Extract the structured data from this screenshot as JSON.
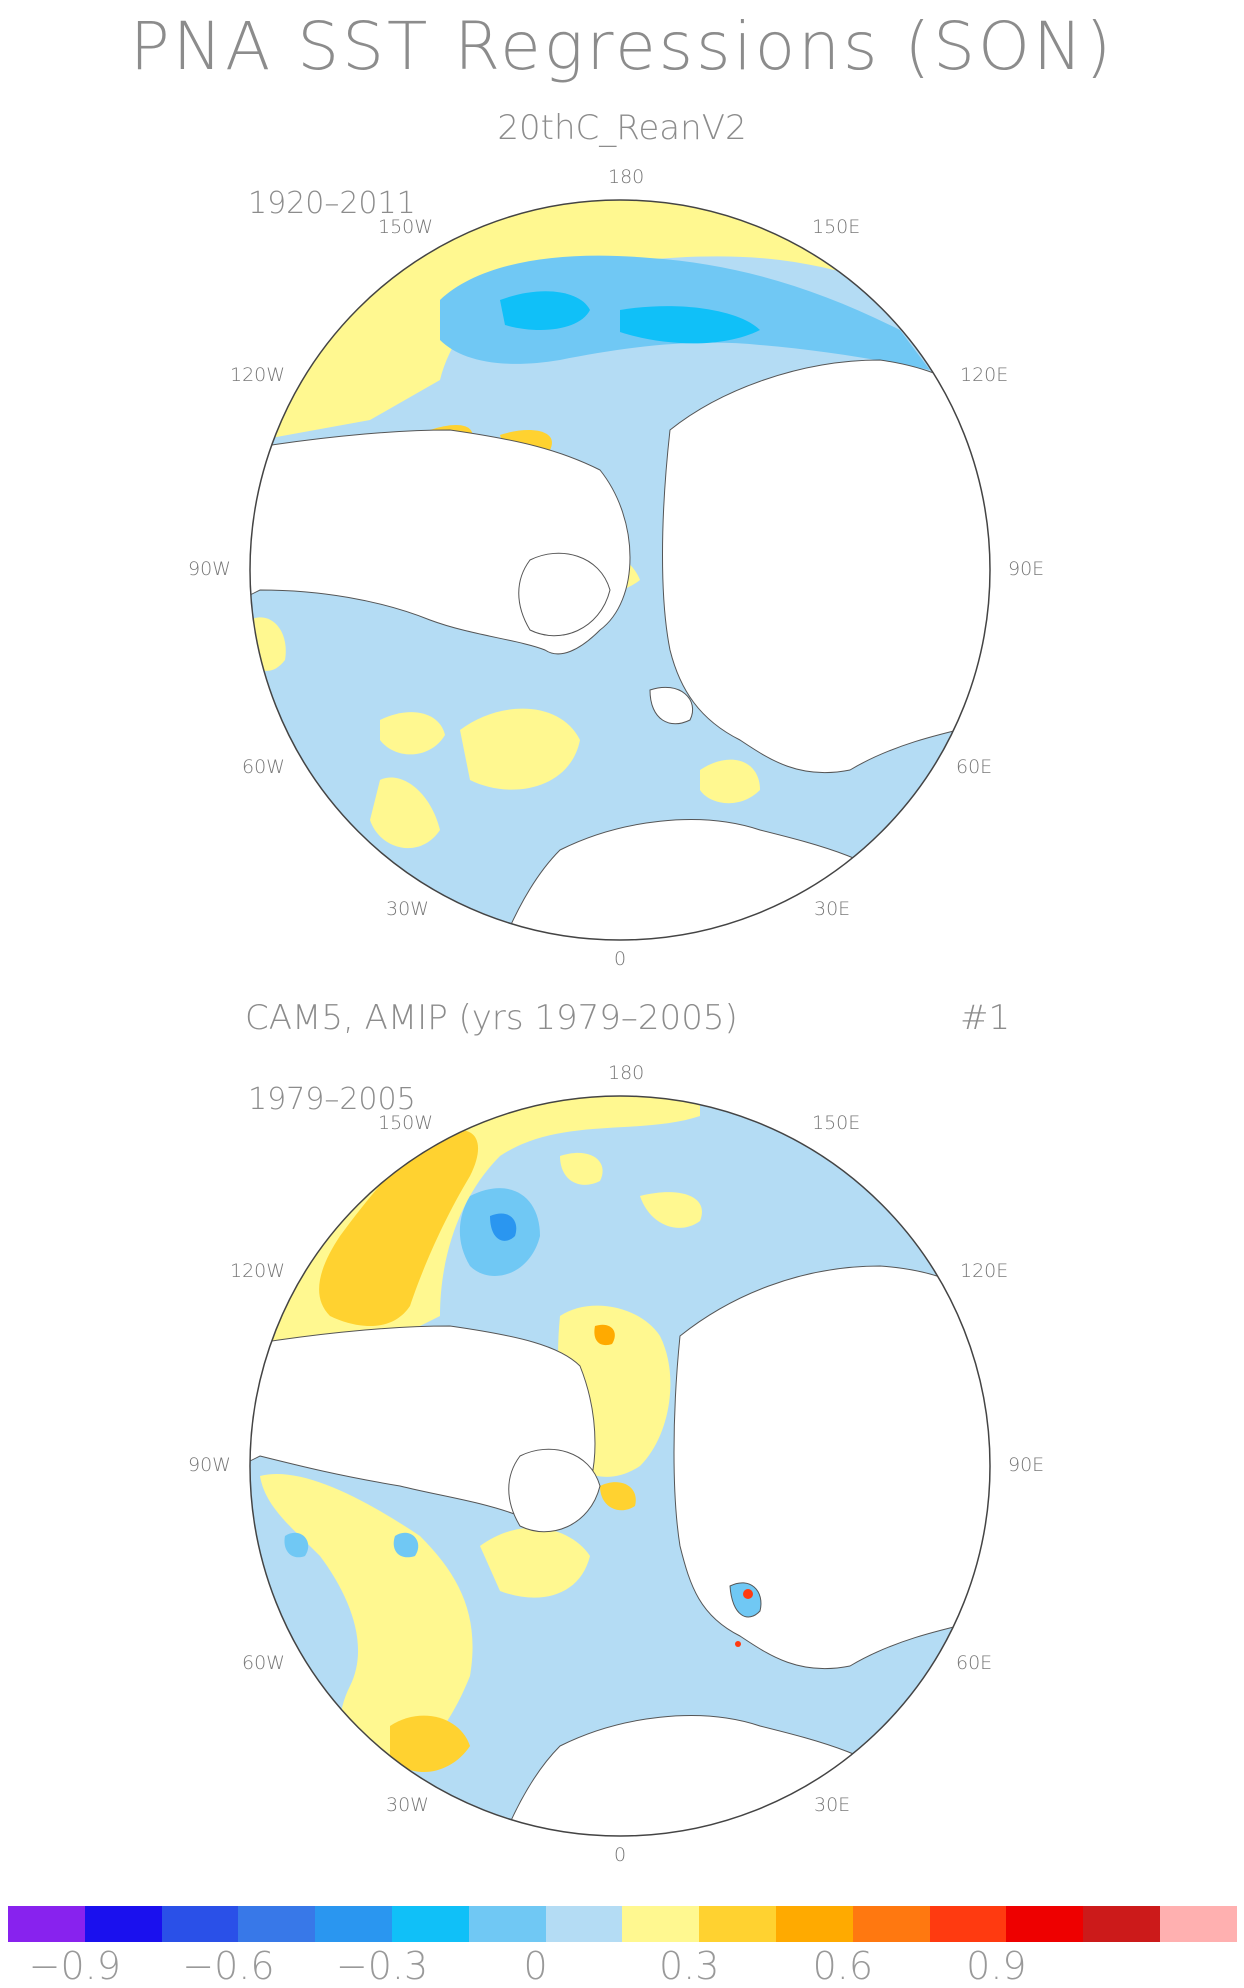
{
  "title": "PNA SST Regressions (SON)",
  "panels": [
    {
      "subtitle": "20thC_ReanV2",
      "period": "1920–2011",
      "labels": {
        "n": "180",
        "s": "0",
        "w150": "150W",
        "w120": "120W",
        "w90": "90W",
        "w60": "60W",
        "w30": "30W",
        "e150": "150E",
        "e120": "120E",
        "e90": "90E",
        "e60": "60E",
        "e30": "30E"
      }
    },
    {
      "subtitle": "CAM5, AMIP (yrs 1979–2005)",
      "member": "#1",
      "period": "1979–2005",
      "labels": {
        "n": "180",
        "s": "0",
        "w150": "150W",
        "w120": "120W",
        "w90": "90W",
        "w60": "60W",
        "w30": "30W",
        "e150": "150E",
        "e120": "120E",
        "e90": "90E",
        "e60": "60E",
        "e30": "30E"
      }
    }
  ],
  "colorbar": {
    "colors": [
      "#8822ee",
      "#1a10ee",
      "#2a50e8",
      "#3878e8",
      "#2a96f0",
      "#10c0f8",
      "#70c8f4",
      "#b4dcf4",
      "#fff890",
      "#ffd230",
      "#ffaa00",
      "#ff7810",
      "#ff3a10",
      "#ee0000",
      "#cc1a1a",
      "#ffb0b0"
    ],
    "ticks": [
      "−0.9",
      "−0.6",
      "−0.3",
      "0",
      "0.3",
      "0.6",
      "0.9"
    ]
  },
  "palette": {
    "land": "#ffffff",
    "light_blue": "#b4dcf4",
    "blue": "#70c8f4",
    "dark_blue": "#10c0f8",
    "yellow": "#fff890",
    "gold": "#ffd230",
    "orange": "#ffaa00",
    "red": "#ff3a10"
  }
}
